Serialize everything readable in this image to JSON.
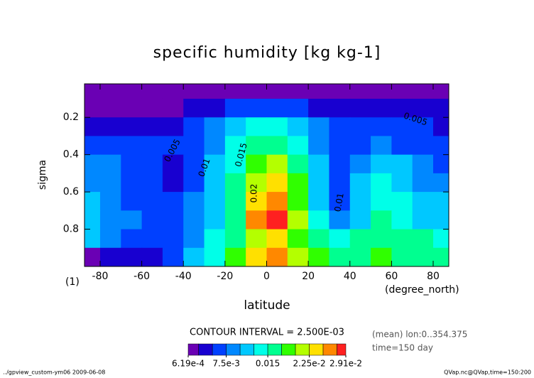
{
  "chart_data": {
    "type": "contour",
    "title": "specific humidity [kg kg-1]",
    "x_label": "latitude",
    "x_unit": "(degree_north)",
    "y_label": "sigma",
    "y_unit": "(1)",
    "x": [
      -85,
      -75,
      -65,
      -55,
      -45,
      -35,
      -25,
      -15,
      -5,
      5,
      15,
      25,
      35,
      45,
      55,
      65,
      75,
      85
    ],
    "y": [
      0.05,
      0.15,
      0.25,
      0.35,
      0.45,
      0.55,
      0.65,
      0.75,
      0.85,
      0.95
    ],
    "z": [
      [
        0.001,
        0.001,
        0.001,
        0.001,
        0.001,
        0.001,
        0.001,
        0.001,
        0.001,
        0.001,
        0.001,
        0.001,
        0.001,
        0.001,
        0.001,
        0.001,
        0.001,
        0.001
      ],
      [
        0.001,
        0.001,
        0.001,
        0.002,
        0.002,
        0.004,
        0.004,
        0.005,
        0.006,
        0.006,
        0.005,
        0.004,
        0.004,
        0.004,
        0.004,
        0.004,
        0.004,
        0.004
      ],
      [
        0.004,
        0.004,
        0.004,
        0.004,
        0.004,
        0.005,
        0.008,
        0.011,
        0.013,
        0.013,
        0.011,
        0.008,
        0.006,
        0.006,
        0.006,
        0.005,
        0.005,
        0.004
      ],
      [
        0.006,
        0.006,
        0.006,
        0.005,
        0.005,
        0.006,
        0.009,
        0.013,
        0.016,
        0.016,
        0.013,
        0.009,
        0.006,
        0.007,
        0.008,
        0.007,
        0.006,
        0.006
      ],
      [
        0.008,
        0.008,
        0.007,
        0.006,
        0.004,
        0.007,
        0.01,
        0.014,
        0.019,
        0.02,
        0.016,
        0.01,
        0.007,
        0.009,
        0.011,
        0.01,
        0.008,
        0.007
      ],
      [
        0.009,
        0.008,
        0.007,
        0.005,
        0.004,
        0.007,
        0.011,
        0.016,
        0.021,
        0.023,
        0.018,
        0.011,
        0.007,
        0.01,
        0.013,
        0.012,
        0.009,
        0.008
      ],
      [
        0.01,
        0.008,
        0.007,
        0.006,
        0.005,
        0.008,
        0.012,
        0.017,
        0.024,
        0.025,
        0.019,
        0.012,
        0.007,
        0.011,
        0.014,
        0.013,
        0.011,
        0.01
      ],
      [
        0.011,
        0.009,
        0.008,
        0.006,
        0.006,
        0.009,
        0.012,
        0.016,
        0.025,
        0.028,
        0.02,
        0.013,
        0.008,
        0.012,
        0.015,
        0.014,
        0.012,
        0.011
      ],
      [
        0.01,
        0.008,
        0.006,
        0.005,
        0.005,
        0.009,
        0.013,
        0.017,
        0.021,
        0.024,
        0.019,
        0.016,
        0.014,
        0.015,
        0.017,
        0.016,
        0.015,
        0.014
      ],
      [
        0.002,
        0.004,
        0.003,
        0.003,
        0.006,
        0.01,
        0.014,
        0.018,
        0.024,
        0.027,
        0.022,
        0.019,
        0.017,
        0.017,
        0.018,
        0.017,
        0.017,
        0.016
      ]
    ],
    "levels": [
      0.0025,
      0.005,
      0.0075,
      0.01,
      0.0125,
      0.015,
      0.0175,
      0.02,
      0.0225,
      0.025,
      0.0275
    ],
    "colors": [
      "#6a00b4",
      "#1800d0",
      "#0040ff",
      "#0088ff",
      "#00c8ff",
      "#00ffe8",
      "#00ff90",
      "#30ff00",
      "#b4ff00",
      "#ffe000",
      "#ff8800",
      "#ff2020"
    ],
    "clim": [
      0.000619,
      0.0291
    ],
    "colorbar_ticks": [
      {
        "value": 0.000619,
        "label": "6.19e-4"
      },
      {
        "value": 0.0075,
        "label": "7.5e-3"
      },
      0.015,
      {
        "value": 0.0225,
        "label": "2.25e-2"
      },
      {
        "value": 0.0291,
        "label": "2.91e-2"
      }
    ],
    "xlim": [
      -87.5,
      87.5
    ],
    "ylim": [
      0.02,
      1.0
    ],
    "xticks": [
      -80,
      -60,
      -40,
      -20,
      0,
      20,
      40,
      60,
      80
    ],
    "yticks": [
      0.2,
      0.4,
      0.6,
      0.8
    ],
    "contour_labels": [
      "0.005",
      "0.01",
      "0.015",
      "0.02",
      "0.01",
      "0.005"
    ],
    "contour_interval": "CONTOUR INTERVAL = 2.500E-03",
    "info": [
      "(mean) lon:0..354.375",
      "time=150 day"
    ],
    "footer_left": "../gpview_custom-ym06  2009-06-08",
    "footer_right": "QVap.nc@QVap,time=150:200"
  }
}
